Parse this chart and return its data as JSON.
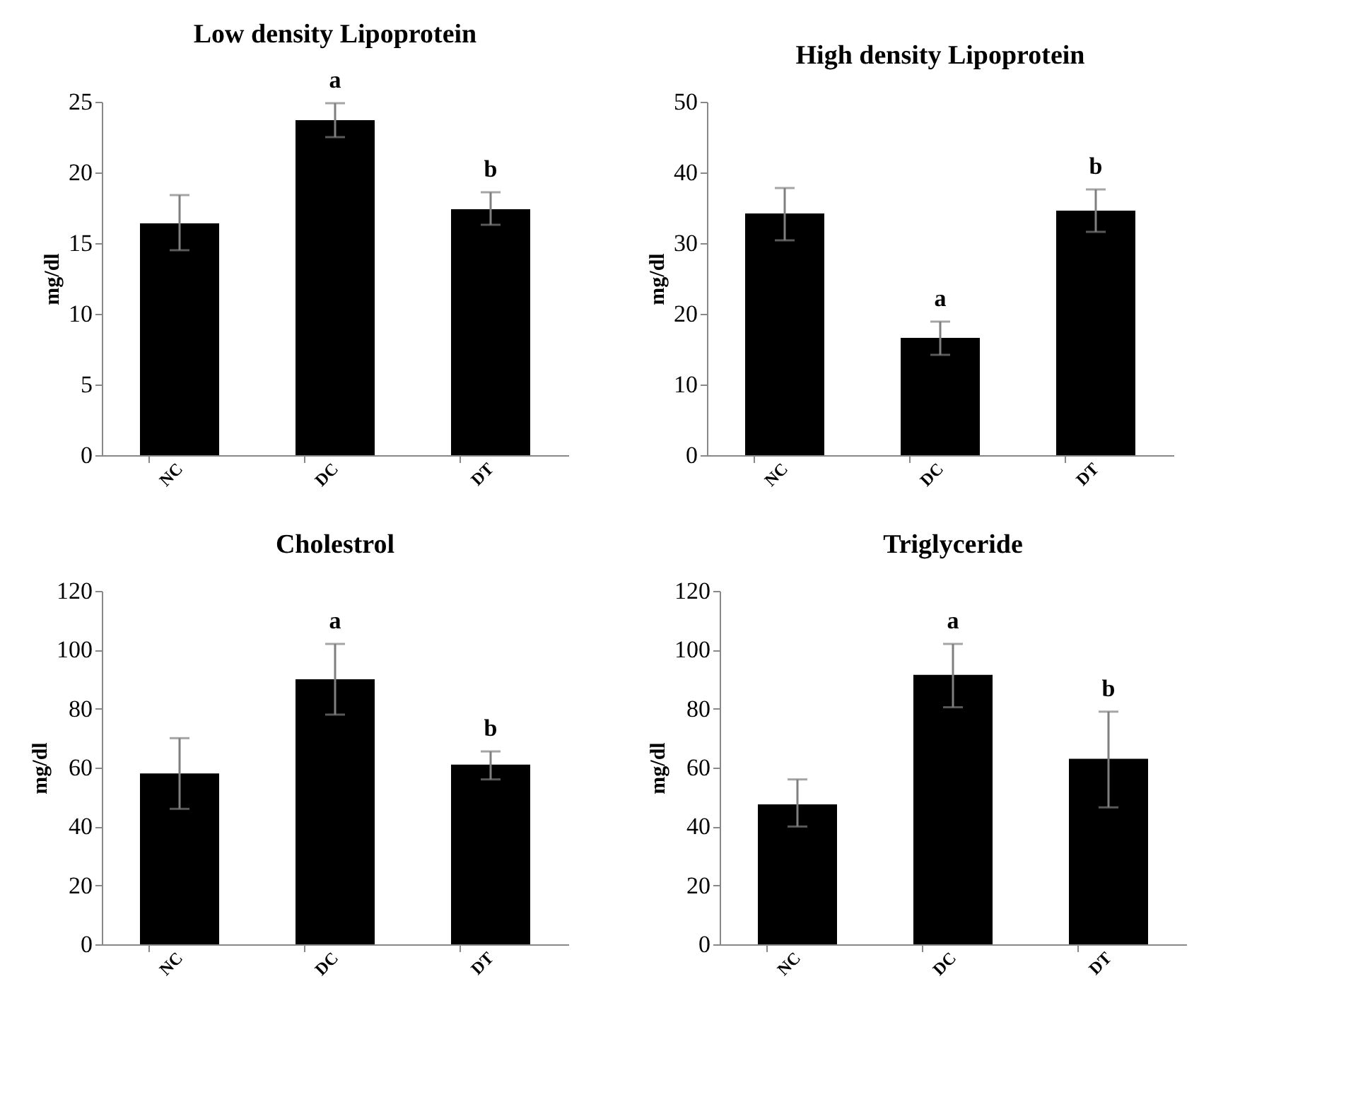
{
  "chart_data": [
    {
      "type": "bar",
      "title": "Low density Lipoprotein",
      "ylabel": "mg/dl",
      "categories": [
        "NC",
        "DC",
        "DT"
      ],
      "color": "#000000",
      "values": [
        16.4,
        23.7,
        17.4
      ],
      "errors": [
        [
          14.5,
          18.4
        ],
        [
          22.5,
          24.9
        ],
        [
          16.3,
          18.6
        ]
      ],
      "ylim": [
        0,
        25
      ],
      "yticks": [
        0,
        5,
        10,
        15,
        20,
        25
      ],
      "annotations": [
        {
          "text": "a",
          "x": "DC",
          "y": 24.9
        },
        {
          "text": "b",
          "x": "DT",
          "y": 18.6
        }
      ]
    },
    {
      "type": "bar",
      "title": "High density Lipoprotein",
      "ylabel": "mg/dl",
      "categories": [
        "NC",
        "DC",
        "DT"
      ],
      "color": "#000000",
      "values": [
        34.2,
        16.6,
        34.6
      ],
      "errors": [
        [
          30.4,
          37.8
        ],
        [
          14.2,
          18.9
        ],
        [
          31.6,
          37.6
        ]
      ],
      "ylim": [
        0,
        50
      ],
      "yticks": [
        0,
        10,
        20,
        30,
        40,
        50
      ],
      "annotations": [
        {
          "text": "a",
          "x": "DC",
          "y": 18.9
        },
        {
          "text": "b",
          "x": "DT",
          "y": 37.6
        }
      ]
    },
    {
      "type": "bar",
      "title": "Cholestrol",
      "ylabel": "mg/dl",
      "categories": [
        "NC",
        "DC",
        "DT"
      ],
      "color": "#000000",
      "values": [
        58,
        90,
        61
      ],
      "errors": [
        [
          46,
          70
        ],
        [
          78,
          102
        ],
        [
          56,
          65.5
        ]
      ],
      "ylim": [
        0,
        120
      ],
      "yticks": [
        0,
        20,
        40,
        60,
        80,
        100,
        120
      ],
      "annotations": [
        {
          "text": "a",
          "x": "DC",
          "y": 102
        },
        {
          "text": "b",
          "x": "DT",
          "y": 65.5
        }
      ]
    },
    {
      "type": "bar",
      "title": "Triglyceride",
      "ylabel": "mg/dl",
      "categories": [
        "NC",
        "DC",
        "DT"
      ],
      "color": "#000000",
      "values": [
        47.5,
        91.5,
        63
      ],
      "errors": [
        [
          40,
          56
        ],
        [
          80.5,
          102
        ],
        [
          46.5,
          79
        ]
      ],
      "ylim": [
        0,
        120
      ],
      "yticks": [
        0,
        20,
        40,
        60,
        80,
        100,
        120
      ],
      "annotations": [
        {
          "text": "a",
          "x": "DC",
          "y": 102
        },
        {
          "text": "b",
          "x": "DT",
          "y": 79
        }
      ]
    }
  ]
}
